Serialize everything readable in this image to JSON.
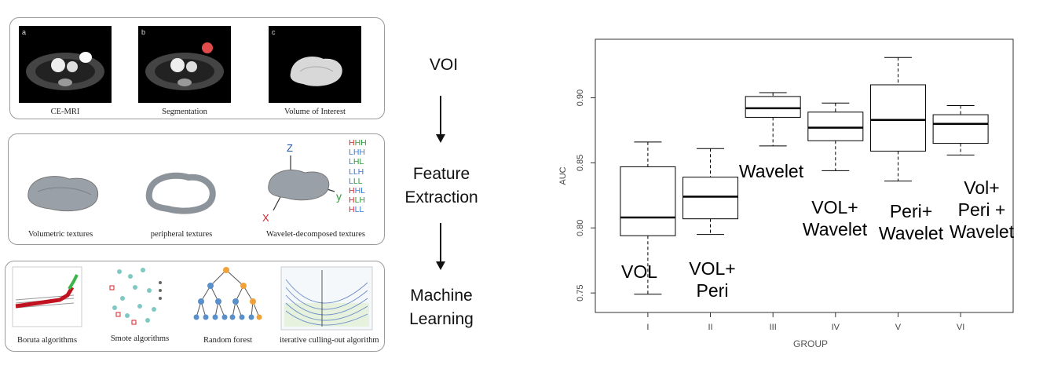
{
  "pipeline": {
    "panel1": {
      "letters": [
        "a",
        "b",
        "c"
      ],
      "captions": [
        "CE-MRI",
        "Segmentation",
        "Volume of Interest"
      ]
    },
    "panel2": {
      "captions": [
        "Volumetric textures",
        "peripheral textures",
        "Wavelet-decomposed textures"
      ],
      "axes": {
        "z": "Z",
        "y": "y",
        "x": "X"
      },
      "wavelet_bands": [
        "HHH",
        "LHH",
        "LHL",
        "LLH",
        "LLL",
        "HHL",
        "HLH",
        "HLL"
      ]
    },
    "panel3": {
      "captions": [
        "Boruta algorithms",
        "Smote algorithms",
        "Random forest",
        "iterative culling-out algorithm"
      ]
    },
    "stages": {
      "voi": "VOI",
      "feature_line1": "Feature",
      "feature_line2": "Extraction",
      "ml_line1": "Machine",
      "ml_line2": "Learning"
    }
  },
  "chart_data": {
    "type": "box",
    "xlabel": "GROUP",
    "ylabel": "AUC",
    "ylim": [
      0.735,
      0.945
    ],
    "yticks": [
      0.75,
      0.8,
      0.85,
      0.9
    ],
    "ytick_labels": [
      "0.75",
      "0.80",
      "0.85",
      "0.90"
    ],
    "categories": [
      "I",
      "II",
      "III",
      "IV",
      "V",
      "VI"
    ],
    "boxes": [
      {
        "whisker_low": 0.749,
        "q1": 0.794,
        "median": 0.808,
        "q3": 0.847,
        "whisker_high": 0.866,
        "annotation": [
          "VOL"
        ]
      },
      {
        "whisker_low": 0.795,
        "q1": 0.807,
        "median": 0.824,
        "q3": 0.839,
        "whisker_high": 0.861,
        "annotation": [
          "VOL+",
          "Peri"
        ]
      },
      {
        "whisker_low": 0.863,
        "q1": 0.885,
        "median": 0.892,
        "q3": 0.901,
        "whisker_high": 0.904,
        "annotation": [
          "Wavelet"
        ]
      },
      {
        "whisker_low": 0.844,
        "q1": 0.867,
        "median": 0.877,
        "q3": 0.889,
        "whisker_high": 0.896,
        "annotation": [
          "VOL+",
          "Wavelet"
        ]
      },
      {
        "whisker_low": 0.836,
        "q1": 0.859,
        "median": 0.883,
        "q3": 0.91,
        "whisker_high": 0.931,
        "annotation": [
          "Peri+",
          "Wavelet"
        ]
      },
      {
        "whisker_low": 0.856,
        "q1": 0.865,
        "median": 0.88,
        "q3": 0.887,
        "whisker_high": 0.894,
        "annotation": [
          "Vol+",
          "Peri +",
          "Wavelet"
        ]
      }
    ],
    "colors": {
      "box": "#000000",
      "axis": "#333333",
      "band_H": "#d9202a",
      "band_L": "#3b7ad1",
      "band_green": "#2e9a3a"
    }
  }
}
